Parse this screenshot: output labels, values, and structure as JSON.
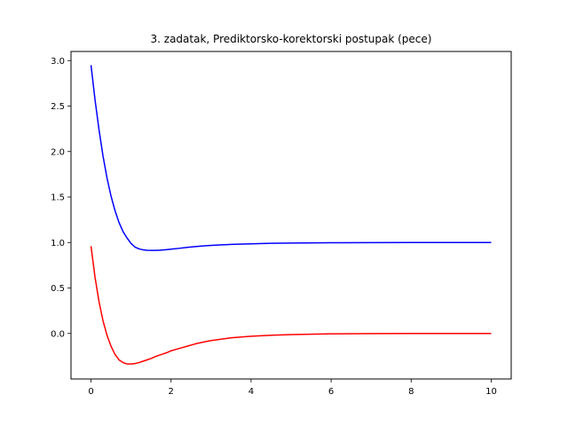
{
  "chart_data": {
    "type": "line",
    "title": "3. zadatak, Prediktorsko-korektorski postupak (pece)",
    "xlabel": "",
    "ylabel": "",
    "xlim": [
      -0.5,
      10.5
    ],
    "ylim": [
      -0.5,
      3.1
    ],
    "xticks": [
      0,
      2,
      4,
      6,
      8,
      10
    ],
    "xtick_labels": [
      "0",
      "2",
      "4",
      "6",
      "8",
      "10"
    ],
    "yticks": [
      0.0,
      0.5,
      1.0,
      1.5,
      2.0,
      2.5,
      3.0
    ],
    "ytick_labels": [
      "0.0",
      "0.5",
      "1.0",
      "1.5",
      "2.0",
      "2.5",
      "3.0"
    ],
    "grid": false,
    "legend": false,
    "series": [
      {
        "color": "#0000ff",
        "x": [
          0,
          0.1,
          0.2,
          0.3,
          0.4,
          0.5,
          0.6,
          0.7,
          0.8,
          0.9,
          1.0,
          1.1,
          1.2,
          1.3,
          1.4,
          1.5,
          1.6,
          1.7,
          1.8,
          1.9,
          2.0,
          2.2,
          2.4,
          2.6,
          2.8,
          3.0,
          3.5,
          4.0,
          4.5,
          5.0,
          6.0,
          7.0,
          8.0,
          9.0,
          10.0
        ],
        "y": [
          2.95,
          2.57,
          2.24,
          1.95,
          1.71,
          1.51,
          1.35,
          1.22,
          1.12,
          1.05,
          0.99,
          0.95,
          0.93,
          0.92,
          0.915,
          0.913,
          0.913,
          0.915,
          0.918,
          0.922,
          0.927,
          0.936,
          0.946,
          0.955,
          0.962,
          0.968,
          0.979,
          0.986,
          0.991,
          0.994,
          0.997,
          0.999,
          1.0,
          1.0,
          1.0
        ]
      },
      {
        "color": "#ff0000",
        "x": [
          0,
          0.1,
          0.2,
          0.3,
          0.4,
          0.5,
          0.6,
          0.7,
          0.8,
          0.9,
          1.0,
          1.1,
          1.2,
          1.3,
          1.4,
          1.5,
          1.6,
          1.7,
          1.8,
          1.9,
          2.0,
          2.2,
          2.4,
          2.6,
          2.8,
          3.0,
          3.5,
          4.0,
          4.5,
          5.0,
          6.0,
          7.0,
          8.0,
          9.0,
          10.0
        ],
        "y": [
          0.96,
          0.62,
          0.35,
          0.14,
          -0.02,
          -0.14,
          -0.23,
          -0.29,
          -0.32,
          -0.335,
          -0.335,
          -0.33,
          -0.32,
          -0.305,
          -0.29,
          -0.275,
          -0.255,
          -0.24,
          -0.225,
          -0.21,
          -0.19,
          -0.165,
          -0.14,
          -0.115,
          -0.095,
          -0.078,
          -0.048,
          -0.03,
          -0.019,
          -0.012,
          -0.004,
          -0.001,
          0.0,
          0.0,
          0.0
        ]
      }
    ]
  }
}
